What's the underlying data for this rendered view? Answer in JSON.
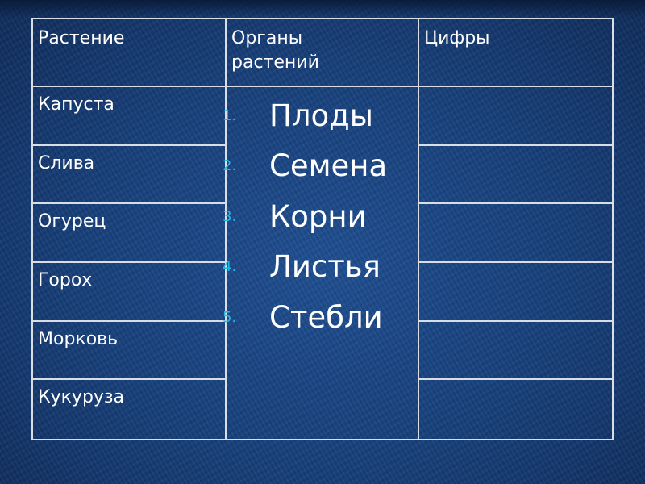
{
  "table": {
    "headers": [
      "Растение",
      "Органы растений",
      "Цифры"
    ],
    "header_lines": [
      "Органы",
      "растений"
    ],
    "plants": [
      "Капуста",
      "Слива",
      "Огурец",
      "Горох",
      "Морковь",
      "Кукуруза"
    ],
    "organs": [
      {
        "num": "1.",
        "label": "Плоды"
      },
      {
        "num": "2.",
        "label": "Семена"
      },
      {
        "num": "3.",
        "label": "Корни"
      },
      {
        "num": "4.",
        "label": "Листья"
      },
      {
        "num": "5.",
        "label": "Стебли"
      }
    ],
    "digits": [
      "",
      "",
      "",
      "",
      "",
      ""
    ]
  },
  "colors": {
    "background": "#173f7a",
    "grid": "#d8dde6",
    "list_number": "#22b8e6",
    "text": "#ffffff"
  }
}
